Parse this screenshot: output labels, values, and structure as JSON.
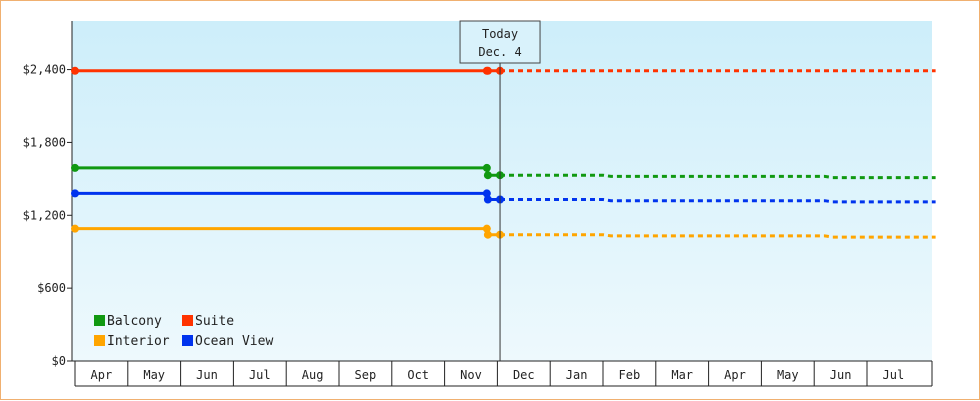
{
  "chart_data": {
    "type": "line",
    "title": "",
    "xlabel": "",
    "ylabel": "",
    "ylim": [
      0,
      2800
    ],
    "y_ticks": [
      {
        "value": 0,
        "label": "$0"
      },
      {
        "value": 600,
        "label": "$600"
      },
      {
        "value": 1200,
        "label": "$1,200"
      },
      {
        "value": 1800,
        "label": "$1,800"
      },
      {
        "value": 2400,
        "label": "$2,400"
      }
    ],
    "x_months": [
      "Apr",
      "May",
      "Jun",
      "Jul",
      "Aug",
      "Sep",
      "Oct",
      "Nov",
      "Dec",
      "Jan",
      "Feb",
      "Mar",
      "Apr",
      "May",
      "Jun",
      "Jul"
    ],
    "today": {
      "line1": "Today",
      "line2": "Dec. 4",
      "position": 8.05
    },
    "grid": false,
    "background_gradient": [
      "#cdeefa",
      "#eef9fd"
    ],
    "legend": {
      "placement": "bottom-left",
      "entries": [
        {
          "label": "Balcony",
          "color": "#119911"
        },
        {
          "label": "Suite",
          "color": "#ff3300"
        },
        {
          "label": "Interior",
          "color": "#ffa500"
        },
        {
          "label": "Ocean View",
          "color": "#0033ee"
        }
      ]
    },
    "series": [
      {
        "name": "Suite",
        "color": "#ff3300",
        "history": [
          [
            0,
            2390
          ],
          [
            7.8,
            2390
          ],
          [
            7.82,
            2390
          ],
          [
            8.05,
            2390
          ]
        ],
        "forecast": [
          [
            8.05,
            2390
          ],
          [
            16.3,
            2390
          ]
        ],
        "markers": [
          [
            0,
            2390
          ],
          [
            7.8,
            2390
          ],
          [
            7.82,
            2390
          ],
          [
            8.05,
            2390
          ]
        ]
      },
      {
        "name": "Balcony",
        "color": "#119911",
        "history": [
          [
            0,
            1590
          ],
          [
            7.8,
            1590
          ],
          [
            7.82,
            1530
          ],
          [
            8.05,
            1530
          ]
        ],
        "forecast": [
          [
            8.05,
            1530
          ],
          [
            10,
            1530
          ],
          [
            10.15,
            1520
          ],
          [
            14.2,
            1520
          ],
          [
            14.35,
            1510
          ],
          [
            16.3,
            1510
          ]
        ],
        "markers": [
          [
            0,
            1590
          ],
          [
            7.8,
            1590
          ],
          [
            7.82,
            1530
          ],
          [
            8.05,
            1530
          ]
        ]
      },
      {
        "name": "Ocean View",
        "color": "#0033ee",
        "history": [
          [
            0,
            1380
          ],
          [
            7.8,
            1380
          ],
          [
            7.82,
            1330
          ],
          [
            8.05,
            1330
          ]
        ],
        "forecast": [
          [
            8.05,
            1330
          ],
          [
            10,
            1330
          ],
          [
            10.15,
            1320
          ],
          [
            14.2,
            1320
          ],
          [
            14.35,
            1310
          ],
          [
            16.3,
            1310
          ]
        ],
        "markers": [
          [
            0,
            1380
          ],
          [
            7.8,
            1380
          ],
          [
            7.82,
            1330
          ],
          [
            8.05,
            1330
          ]
        ]
      },
      {
        "name": "Interior",
        "color": "#ffa500",
        "history": [
          [
            0,
            1090
          ],
          [
            7.8,
            1090
          ],
          [
            7.82,
            1040
          ],
          [
            8.05,
            1040
          ]
        ],
        "forecast": [
          [
            8.05,
            1040
          ],
          [
            10,
            1040
          ],
          [
            10.15,
            1030
          ],
          [
            14.2,
            1030
          ],
          [
            14.35,
            1020
          ],
          [
            16.3,
            1020
          ]
        ],
        "markers": [
          [
            0,
            1090
          ],
          [
            7.8,
            1090
          ],
          [
            7.82,
            1040
          ],
          [
            8.05,
            1040
          ]
        ]
      }
    ]
  }
}
